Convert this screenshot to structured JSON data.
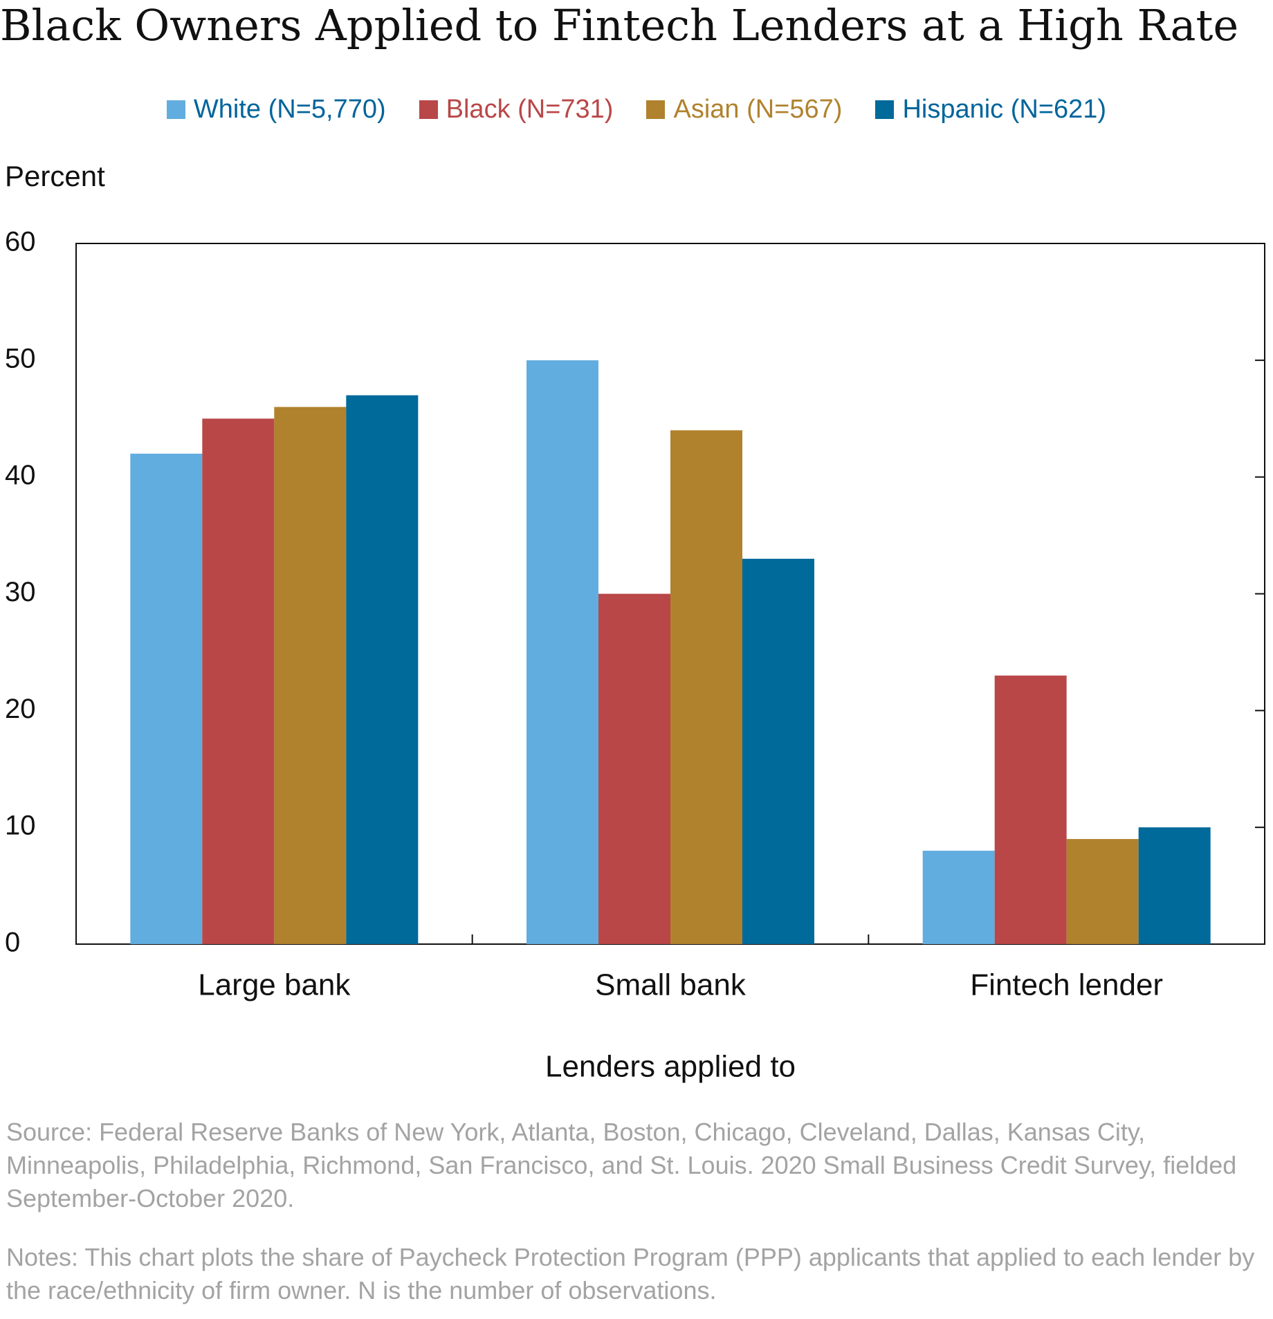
{
  "chart_data": {
    "type": "bar",
    "title": "Black Owners Applied to Fintech Lenders at a High Rate",
    "ylabel": "Percent",
    "xlabel": "Lenders applied to",
    "categories": [
      "Large bank",
      "Small bank",
      "Fintech lender"
    ],
    "series": [
      {
        "name": "White (N=5,770)",
        "color": "#62ADDF",
        "values": [
          42,
          50,
          8
        ]
      },
      {
        "name": "Black (N=731)",
        "color": "#B94748",
        "values": [
          45,
          30,
          23
        ]
      },
      {
        "name": "Asian (N=567)",
        "color": "#B0822D",
        "values": [
          46,
          44,
          9
        ]
      },
      {
        "name": "Hispanic (N=621)",
        "color": "#006A9A",
        "values": [
          47,
          33,
          10
        ]
      }
    ],
    "ylim": [
      0,
      60
    ],
    "yticks": [
      "0",
      "10",
      "20",
      "30",
      "40",
      "50",
      "60"
    ],
    "legend_position": "top-center",
    "grid": false,
    "legend_text_colors": [
      "#00649B",
      "#B94748",
      "#B0822D",
      "#00649B"
    ]
  },
  "source": "Source: Federal Reserve Banks of New York, Atlanta, Boston, Chicago, Cleveland, Dallas, Kansas City, Minneapolis, Philadelphia, Richmond, San Francisco, and St. Louis. 2020 Small Business Credit Survey, fielded September-October 2020.",
  "notes": "Notes: This chart plots the share of Paycheck Protection Program (PPP) applicants that applied to each lender by the race/ethnicity of firm owner. N is the number of observations."
}
